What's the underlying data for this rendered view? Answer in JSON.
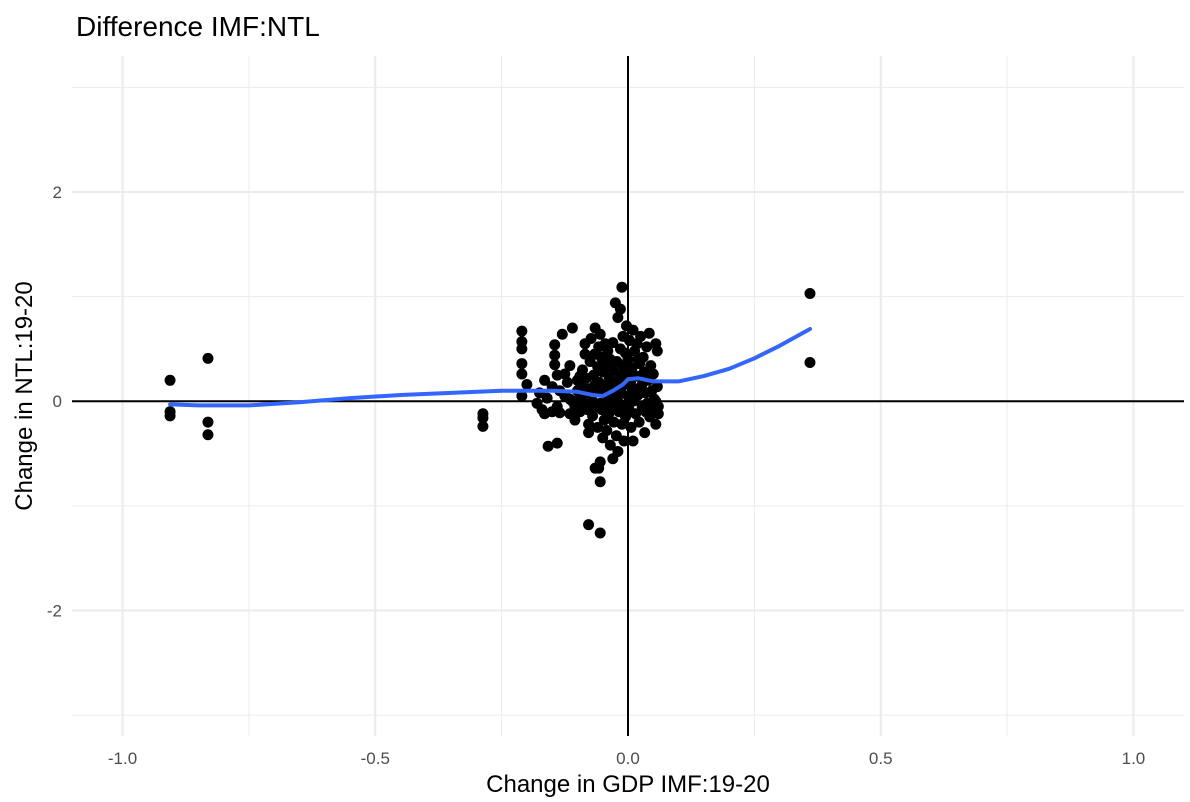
{
  "chart_data": {
    "type": "scatter",
    "title": "Difference IMF:NTL",
    "xlabel": "Change in GDP IMF:19-20",
    "ylabel": "Change in NTL:19-20",
    "xlim": [
      -1.1,
      1.1
    ],
    "ylim": [
      -3.2,
      3.3
    ],
    "x_ticks": [
      -1.0,
      -0.5,
      0.0,
      0.5,
      1.0
    ],
    "x_tick_labels": [
      "-1.0",
      "-0.5",
      "0.0",
      "0.5",
      "1.0"
    ],
    "y_ticks": [
      -2,
      0,
      2
    ],
    "y_tick_labels": [
      "-2",
      "0",
      "2"
    ],
    "x_minor_ticks": [
      -0.75,
      -0.25,
      0.25,
      0.75
    ],
    "y_minor_ticks": [
      -3,
      -1,
      1,
      3
    ],
    "grid": true,
    "reference_lines": {
      "x": 0,
      "y": 0,
      "color": "#000000"
    },
    "colors": {
      "points": "#000000",
      "smooth": "#3366ff",
      "grid": "#ebebeb",
      "background": "#ffffff"
    },
    "points": [
      {
        "x": -0.906,
        "y": 0.2
      },
      {
        "x": -0.906,
        "y": -0.1
      },
      {
        "x": -0.906,
        "y": -0.14
      },
      {
        "x": -0.831,
        "y": 0.41
      },
      {
        "x": -0.831,
        "y": -0.2
      },
      {
        "x": -0.831,
        "y": -0.32
      },
      {
        "x": -0.287,
        "y": -0.12
      },
      {
        "x": -0.287,
        "y": -0.16
      },
      {
        "x": -0.287,
        "y": -0.24
      },
      {
        "x": -0.21,
        "y": 0.67
      },
      {
        "x": -0.21,
        "y": 0.57
      },
      {
        "x": -0.21,
        "y": 0.5
      },
      {
        "x": -0.21,
        "y": 0.36
      },
      {
        "x": -0.21,
        "y": 0.26
      },
      {
        "x": -0.21,
        "y": 0.05
      },
      {
        "x": -0.2,
        "y": 0.16
      },
      {
        "x": -0.18,
        "y": -0.02
      },
      {
        "x": -0.175,
        "y": 0.08
      },
      {
        "x": -0.17,
        "y": -0.08
      },
      {
        "x": -0.165,
        "y": -0.12
      },
      {
        "x": -0.16,
        "y": 0.03
      },
      {
        "x": -0.165,
        "y": 0.2
      },
      {
        "x": -0.158,
        "y": -0.43
      },
      {
        "x": -0.15,
        "y": -0.1
      },
      {
        "x": -0.15,
        "y": 0.14
      },
      {
        "x": -0.145,
        "y": 0.54
      },
      {
        "x": -0.145,
        "y": 0.44
      },
      {
        "x": -0.145,
        "y": 0.35
      },
      {
        "x": -0.14,
        "y": -0.05
      },
      {
        "x": -0.14,
        "y": 0.25
      },
      {
        "x": -0.14,
        "y": -0.4
      },
      {
        "x": -0.135,
        "y": -0.11
      },
      {
        "x": -0.13,
        "y": 0.64
      },
      {
        "x": -0.125,
        "y": 0.05
      },
      {
        "x": -0.12,
        "y": 0.18
      },
      {
        "x": -0.115,
        "y": 0.02
      },
      {
        "x": -0.115,
        "y": 0.34
      },
      {
        "x": -0.11,
        "y": 0.7
      },
      {
        "x": -0.11,
        "y": 0.0
      },
      {
        "x": -0.105,
        "y": -0.05
      },
      {
        "x": -0.105,
        "y": -0.18
      },
      {
        "x": -0.1,
        "y": 0.1
      },
      {
        "x": -0.1,
        "y": 0.2
      },
      {
        "x": -0.095,
        "y": 0.05
      },
      {
        "x": -0.095,
        "y": -0.1
      },
      {
        "x": -0.09,
        "y": 0.15
      },
      {
        "x": -0.09,
        "y": 0.3
      },
      {
        "x": -0.088,
        "y": -0.03
      },
      {
        "x": -0.085,
        "y": 0.45
      },
      {
        "x": -0.085,
        "y": 0.55
      },
      {
        "x": -0.083,
        "y": 0.22
      },
      {
        "x": -0.08,
        "y": -0.08
      },
      {
        "x": -0.08,
        "y": 0.08
      },
      {
        "x": -0.078,
        "y": -0.22
      },
      {
        "x": -0.078,
        "y": -0.3
      },
      {
        "x": -0.075,
        "y": 0.12
      },
      {
        "x": -0.075,
        "y": 0.38
      },
      {
        "x": -0.073,
        "y": 0.6
      },
      {
        "x": -0.07,
        "y": 0.0
      },
      {
        "x": -0.07,
        "y": -0.14
      },
      {
        "x": -0.068,
        "y": 0.25
      },
      {
        "x": -0.066,
        "y": 0.45
      },
      {
        "x": -0.065,
        "y": 0.7
      },
      {
        "x": -0.063,
        "y": -0.05
      },
      {
        "x": -0.062,
        "y": 0.1
      },
      {
        "x": -0.06,
        "y": -0.25
      },
      {
        "x": -0.06,
        "y": 0.33
      },
      {
        "x": -0.058,
        "y": 0.52
      },
      {
        "x": -0.057,
        "y": 0.18
      },
      {
        "x": -0.055,
        "y": 0.64
      },
      {
        "x": -0.055,
        "y": -0.02
      },
      {
        "x": -0.053,
        "y": 0.42
      },
      {
        "x": -0.052,
        "y": -0.08
      },
      {
        "x": -0.05,
        "y": 0.28
      },
      {
        "x": -0.05,
        "y": -0.35
      },
      {
        "x": -0.048,
        "y": 0.08
      },
      {
        "x": -0.047,
        "y": -0.18
      },
      {
        "x": -0.045,
        "y": 0.55
      },
      {
        "x": -0.045,
        "y": 0.35
      },
      {
        "x": -0.043,
        "y": 0.15
      },
      {
        "x": -0.042,
        "y": -0.28
      },
      {
        "x": -0.04,
        "y": 0.02
      },
      {
        "x": -0.04,
        "y": 0.48
      },
      {
        "x": -0.038,
        "y": -0.12
      },
      {
        "x": -0.037,
        "y": 0.22
      },
      {
        "x": -0.035,
        "y": 0.4
      },
      {
        "x": -0.035,
        "y": -0.42
      },
      {
        "x": -0.033,
        "y": 0.1
      },
      {
        "x": -0.032,
        "y": -0.05
      },
      {
        "x": -0.03,
        "y": 0.3
      },
      {
        "x": -0.03,
        "y": 0.56
      },
      {
        "x": -0.028,
        "y": -0.2
      },
      {
        "x": -0.027,
        "y": 0.05
      },
      {
        "x": -0.025,
        "y": 0.94
      },
      {
        "x": -0.025,
        "y": 0.18
      },
      {
        "x": -0.023,
        "y": -0.33
      },
      {
        "x": -0.022,
        "y": 0.38
      },
      {
        "x": -0.02,
        "y": 0.8
      },
      {
        "x": -0.02,
        "y": 0.0
      },
      {
        "x": -0.018,
        "y": -0.1
      },
      {
        "x": -0.017,
        "y": 0.26
      },
      {
        "x": -0.015,
        "y": 0.5
      },
      {
        "x": -0.015,
        "y": 0.88
      },
      {
        "x": -0.013,
        "y": 0.08
      },
      {
        "x": -0.012,
        "y": -0.22
      },
      {
        "x": -0.01,
        "y": 0.62
      },
      {
        "x": -0.01,
        "y": 0.34
      },
      {
        "x": -0.008,
        "y": -0.04
      },
      {
        "x": -0.007,
        "y": 0.16
      },
      {
        "x": -0.005,
        "y": 0.46
      },
      {
        "x": -0.005,
        "y": -0.15
      },
      {
        "x": -0.003,
        "y": 0.72
      },
      {
        "x": -0.002,
        "y": 0.26
      },
      {
        "x": 0.0,
        "y": 0.05
      },
      {
        "x": 0.0,
        "y": 0.4
      },
      {
        "x": 0.002,
        "y": -0.08
      },
      {
        "x": 0.003,
        "y": 0.58
      },
      {
        "x": 0.005,
        "y": 0.18
      },
      {
        "x": 0.006,
        "y": -0.25
      },
      {
        "x": 0.008,
        "y": 0.32
      },
      {
        "x": 0.01,
        "y": 0.68
      },
      {
        "x": 0.01,
        "y": 0.0
      },
      {
        "x": 0.012,
        "y": 0.12
      },
      {
        "x": 0.013,
        "y": 0.48
      },
      {
        "x": 0.015,
        "y": -0.12
      },
      {
        "x": 0.017,
        "y": 0.24
      },
      {
        "x": 0.018,
        "y": 0.55
      },
      {
        "x": 0.02,
        "y": 0.06
      },
      {
        "x": 0.022,
        "y": -0.2
      },
      {
        "x": 0.023,
        "y": 0.36
      },
      {
        "x": 0.025,
        "y": 0.62
      },
      {
        "x": 0.027,
        "y": 0.15
      },
      {
        "x": 0.028,
        "y": -0.05
      },
      {
        "x": 0.03,
        "y": 0.42
      },
      {
        "x": 0.032,
        "y": 0.28
      },
      {
        "x": 0.033,
        "y": -0.3
      },
      {
        "x": 0.035,
        "y": 0.08
      },
      {
        "x": 0.037,
        "y": 0.52
      },
      {
        "x": 0.038,
        "y": -0.02
      },
      {
        "x": 0.04,
        "y": 0.2
      },
      {
        "x": 0.042,
        "y": 0.65
      },
      {
        "x": 0.043,
        "y": -0.15
      },
      {
        "x": 0.045,
        "y": 0.34
      },
      {
        "x": 0.047,
        "y": 0.1
      },
      {
        "x": 0.048,
        "y": -0.08
      },
      {
        "x": 0.05,
        "y": 0.26
      },
      {
        "x": 0.052,
        "y": 0.02
      },
      {
        "x": 0.055,
        "y": 0.55
      },
      {
        "x": 0.055,
        "y": -0.22
      },
      {
        "x": 0.058,
        "y": 0.48
      },
      {
        "x": 0.058,
        "y": 0.14
      },
      {
        "x": 0.06,
        "y": -0.05
      },
      {
        "x": 0.055,
        "y": 0.0
      },
      {
        "x": 0.06,
        "y": -0.12
      },
      {
        "x": -0.012,
        "y": 1.09
      },
      {
        "x": -0.02,
        "y": -0.48
      },
      {
        "x": -0.008,
        "y": -0.38
      },
      {
        "x": 0.01,
        "y": -0.38
      },
      {
        "x": -0.055,
        "y": -0.58
      },
      {
        "x": -0.058,
        "y": -0.64
      },
      {
        "x": -0.065,
        "y": -0.64
      },
      {
        "x": -0.055,
        "y": -0.77
      },
      {
        "x": -0.078,
        "y": -1.18
      },
      {
        "x": -0.055,
        "y": -1.26
      },
      {
        "x": -0.03,
        "y": -0.55
      },
      {
        "x": 0.36,
        "y": 1.03
      },
      {
        "x": 0.36,
        "y": 0.37
      },
      {
        "x": -0.095,
        "y": 0.24
      },
      {
        "x": -0.085,
        "y": -0.02
      },
      {
        "x": -0.065,
        "y": 0.16
      },
      {
        "x": -0.045,
        "y": -0.08
      },
      {
        "x": -0.025,
        "y": 0.12
      },
      {
        "x": -0.005,
        "y": 0.2
      },
      {
        "x": 0.015,
        "y": 0.08
      },
      {
        "x": 0.035,
        "y": -0.1
      },
      {
        "x": 0.02,
        "y": 0.4
      },
      {
        "x": -0.115,
        "y": -0.12
      },
      {
        "x": -0.125,
        "y": 0.26
      },
      {
        "x": -0.135,
        "y": 0.1
      }
    ],
    "smooth_line": {
      "x": [
        -0.906,
        -0.85,
        -0.75,
        -0.65,
        -0.55,
        -0.45,
        -0.35,
        -0.25,
        -0.2,
        -0.15,
        -0.1,
        -0.07,
        -0.05,
        -0.03,
        -0.01,
        0.0,
        0.02,
        0.05,
        0.1,
        0.15,
        0.2,
        0.25,
        0.3,
        0.36
      ],
      "y": [
        -0.03,
        -0.04,
        -0.04,
        -0.01,
        0.03,
        0.06,
        0.08,
        0.1,
        0.1,
        0.1,
        0.09,
        0.06,
        0.05,
        0.1,
        0.16,
        0.21,
        0.22,
        0.19,
        0.19,
        0.24,
        0.31,
        0.41,
        0.53,
        0.69
      ]
    }
  }
}
